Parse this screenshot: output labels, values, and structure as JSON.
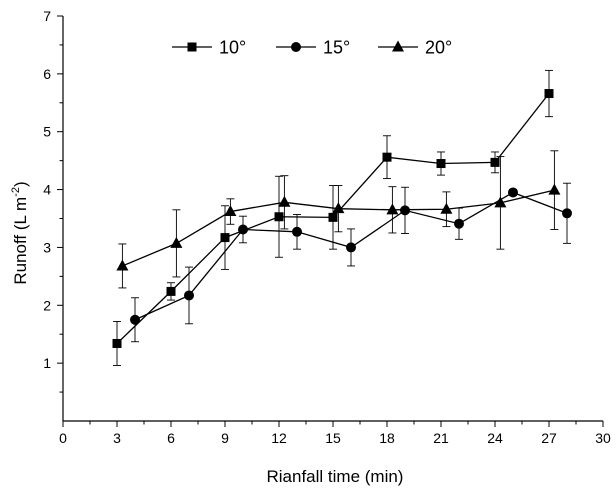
{
  "chart_data": {
    "type": "line",
    "xlabel": "Rianfall time (min)",
    "ylabel": "Runoff (L m",
    "ylabel_sup": "-2",
    "ylabel_tail": ")",
    "xlim": [
      0,
      30
    ],
    "ylim": [
      0,
      7
    ],
    "xticks": [
      0,
      3,
      6,
      9,
      12,
      15,
      18,
      21,
      24,
      27,
      30
    ],
    "yticks": [
      1,
      2,
      3,
      4,
      5,
      6,
      7
    ],
    "grid": false,
    "legend_position": "top-center",
    "series": [
      {
        "name": "10°",
        "marker": "square",
        "x": [
          3,
          6,
          9,
          12,
          15,
          18,
          21,
          24,
          27
        ],
        "y": [
          1.34,
          2.24,
          3.17,
          3.53,
          3.52,
          4.56,
          4.45,
          4.47,
          5.66
        ],
        "err": [
          0.38,
          0.15,
          0.55,
          0.7,
          0.55,
          0.37,
          0.2,
          0.18,
          0.4
        ]
      },
      {
        "name": "15°",
        "marker": "circle",
        "x": [
          4,
          7,
          10,
          13,
          16,
          19,
          22,
          25,
          28
        ],
        "y": [
          1.75,
          2.17,
          3.31,
          3.27,
          3.0,
          3.64,
          3.41,
          3.95,
          3.59
        ],
        "err": [
          0.38,
          0.49,
          0.23,
          0.3,
          0.32,
          0.4,
          0.27,
          0.05,
          0.52
        ]
      },
      {
        "name": "20°",
        "marker": "triangle",
        "x": [
          3.3,
          6.3,
          9.3,
          12.3,
          15.3,
          18.3,
          21.3,
          24.3,
          27.3
        ],
        "y": [
          2.68,
          3.07,
          3.62,
          3.78,
          3.67,
          3.65,
          3.66,
          3.77,
          3.99
        ],
        "err": [
          0.38,
          0.58,
          0.22,
          0.46,
          0.4,
          0.4,
          0.3,
          0.8,
          0.68
        ]
      }
    ]
  }
}
